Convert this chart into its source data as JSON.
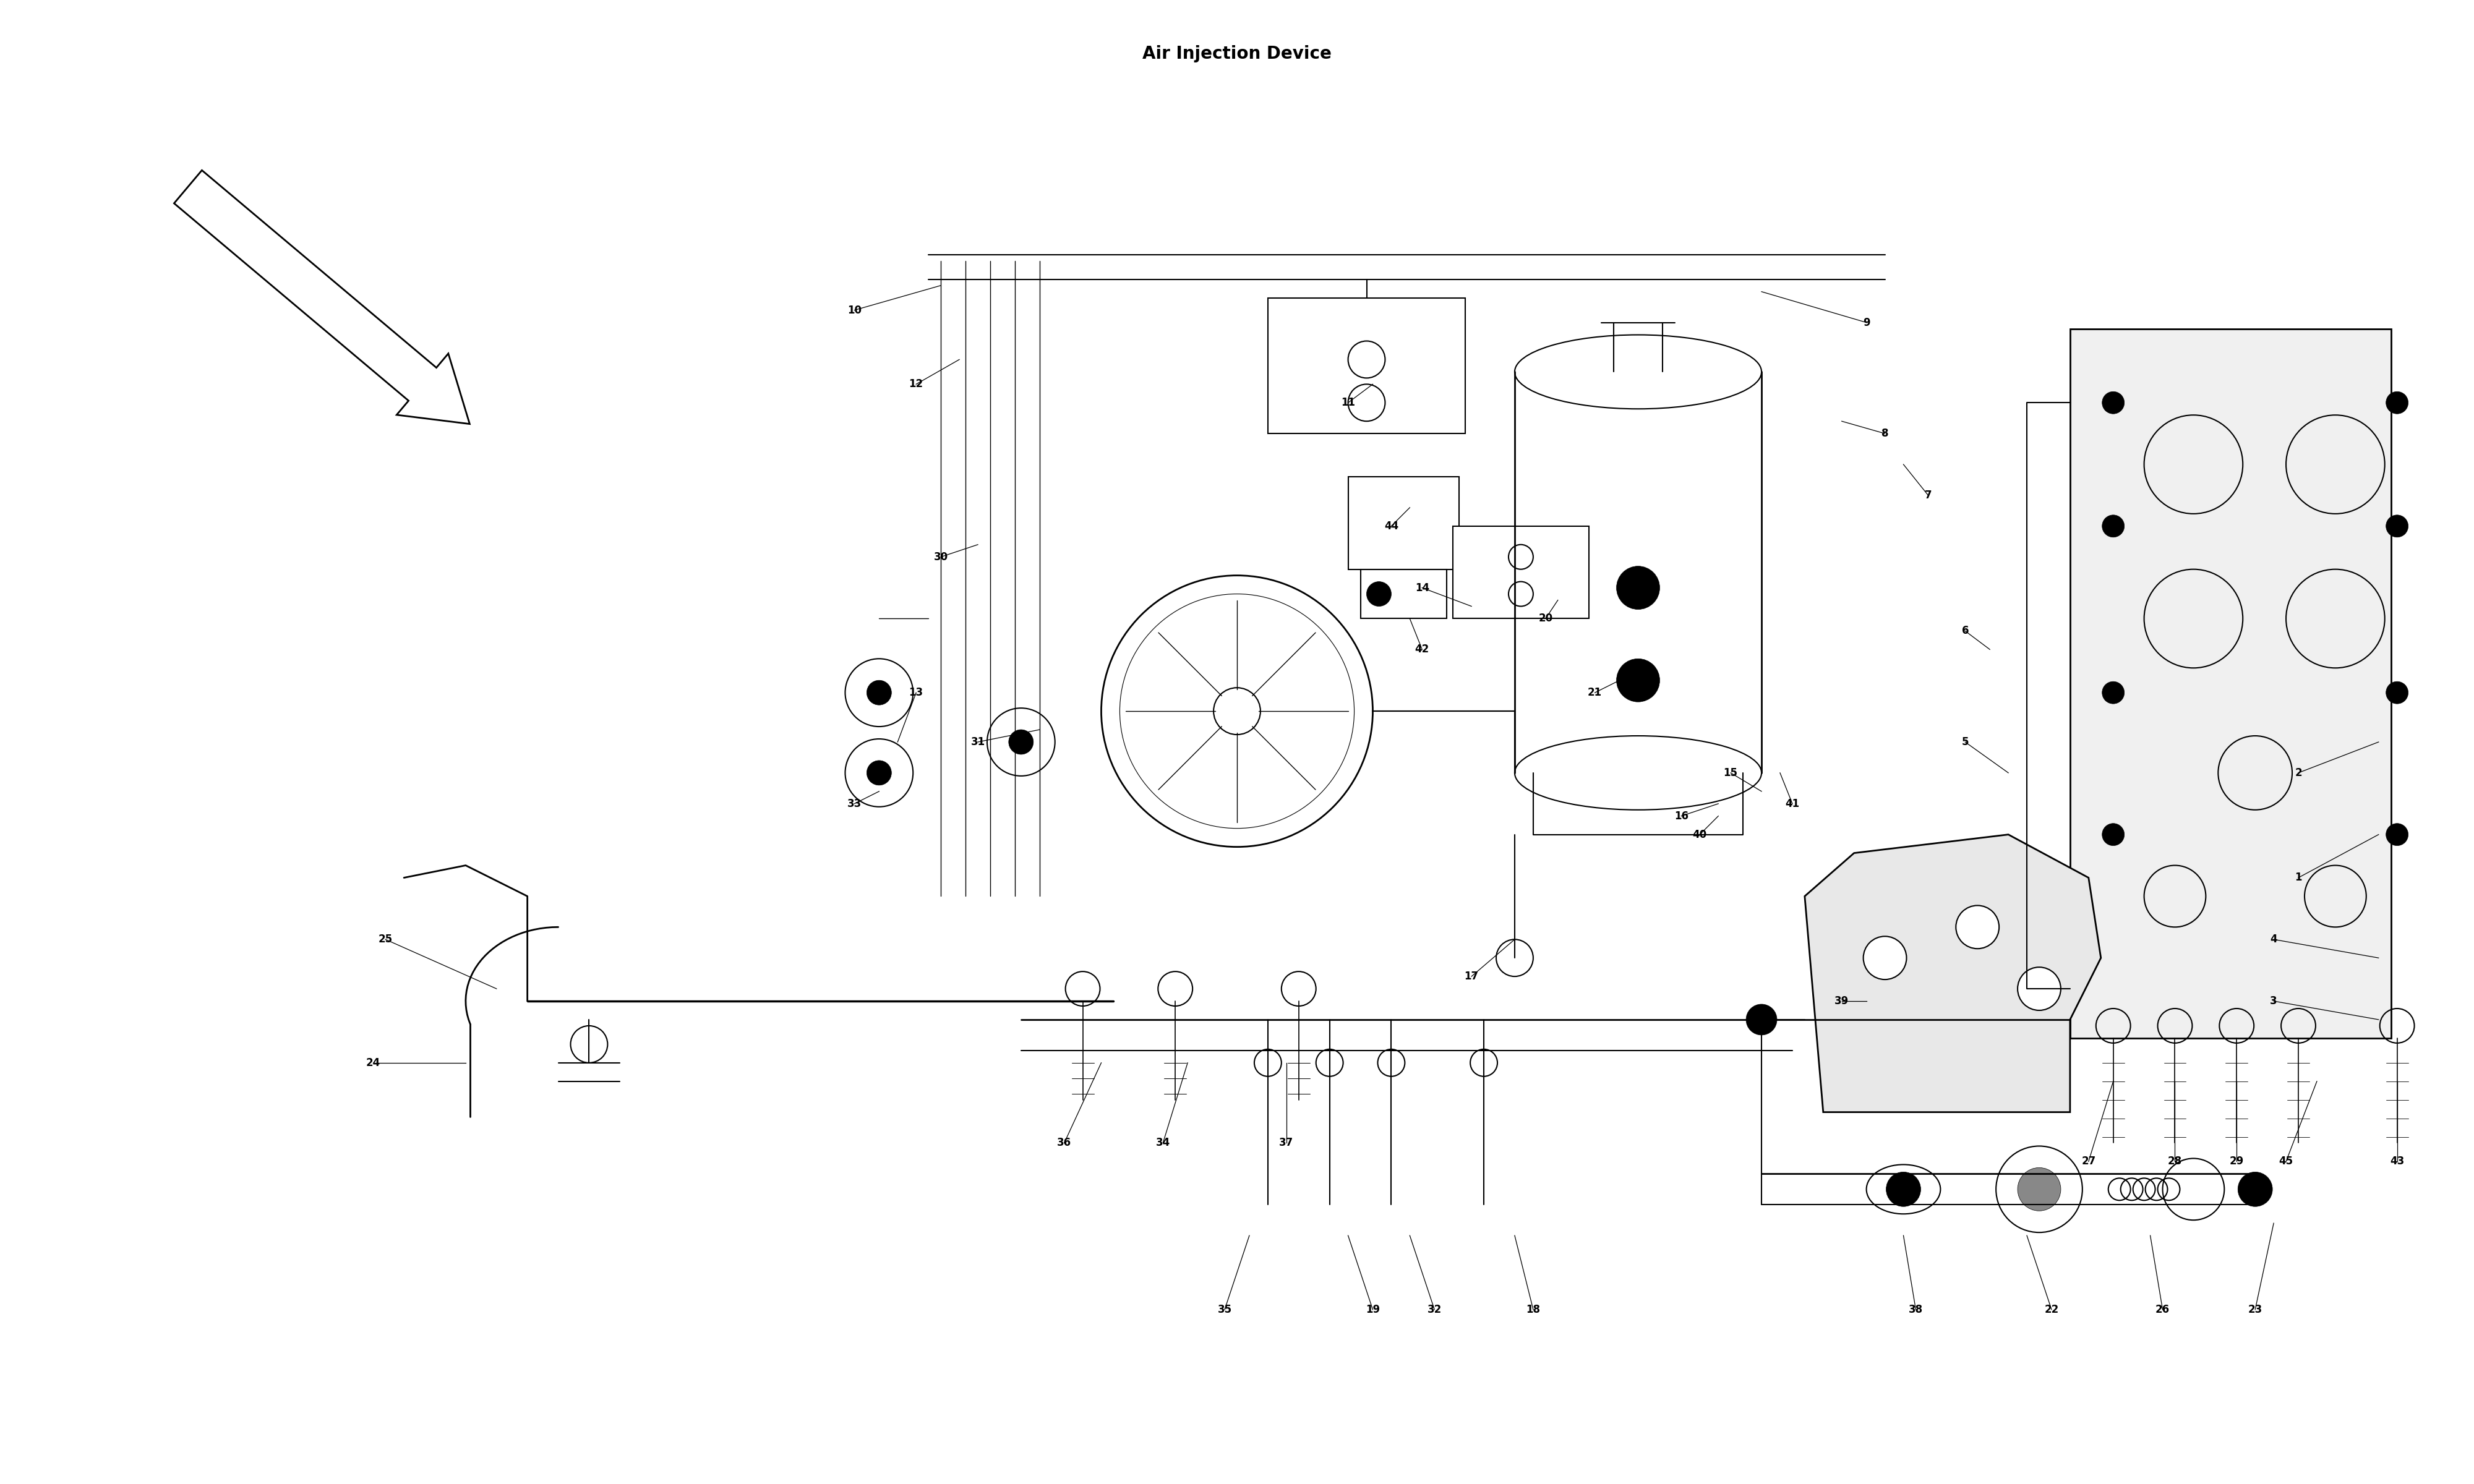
{
  "title": "Air Injection Device",
  "bg_color": "#ffffff",
  "line_color": "#000000",
  "fig_width": 40,
  "fig_height": 24,
  "label_lines": {
    "1": [
      37.2,
      9.8,
      38.5,
      10.5
    ],
    "2": [
      37.2,
      11.5,
      38.5,
      12.0
    ],
    "3": [
      36.8,
      7.8,
      38.5,
      7.5
    ],
    "4": [
      36.8,
      8.8,
      38.5,
      8.5
    ],
    "5": [
      31.8,
      12.0,
      32.5,
      11.5
    ],
    "6": [
      31.8,
      13.8,
      32.2,
      13.5
    ],
    "7": [
      31.2,
      16.0,
      30.8,
      16.5
    ],
    "8": [
      30.5,
      17.0,
      29.8,
      17.2
    ],
    "9": [
      30.2,
      18.8,
      28.5,
      19.3
    ],
    "10": [
      13.8,
      19.0,
      15.2,
      19.4
    ],
    "11": [
      21.8,
      17.5,
      22.2,
      17.8
    ],
    "12": [
      14.8,
      17.8,
      15.5,
      18.2
    ],
    "13": [
      14.8,
      12.8,
      14.5,
      12.0
    ],
    "14": [
      23.0,
      14.5,
      23.8,
      14.2
    ],
    "15": [
      28.0,
      11.5,
      28.5,
      11.2
    ],
    "16": [
      27.2,
      10.8,
      27.8,
      11.0
    ],
    "17": [
      23.8,
      8.2,
      24.5,
      8.8
    ],
    "18": [
      24.8,
      2.8,
      24.5,
      4.0
    ],
    "19": [
      22.2,
      2.8,
      21.8,
      4.0
    ],
    "20": [
      25.0,
      14.0,
      25.2,
      14.3
    ],
    "21": [
      25.8,
      12.8,
      26.2,
      13.0
    ],
    "22": [
      33.2,
      2.8,
      32.8,
      4.0
    ],
    "23": [
      36.5,
      2.8,
      36.8,
      4.2
    ],
    "24": [
      6.0,
      6.8,
      7.5,
      6.8
    ],
    "25": [
      6.2,
      8.8,
      8.0,
      8.0
    ],
    "26": [
      35.0,
      2.8,
      34.8,
      4.0
    ],
    "27": [
      33.8,
      5.2,
      34.2,
      6.5
    ],
    "28": [
      35.2,
      5.2,
      35.2,
      6.5
    ],
    "29": [
      36.2,
      5.2,
      36.2,
      6.5
    ],
    "30": [
      15.2,
      15.0,
      15.8,
      15.2
    ],
    "31": [
      15.8,
      12.0,
      16.8,
      12.2
    ],
    "32": [
      23.2,
      2.8,
      22.8,
      4.0
    ],
    "33": [
      13.8,
      11.0,
      14.2,
      11.2
    ],
    "34": [
      18.8,
      5.5,
      19.2,
      6.8
    ],
    "35": [
      19.8,
      2.8,
      20.2,
      4.0
    ],
    "36": [
      17.2,
      5.5,
      17.8,
      6.8
    ],
    "37": [
      20.8,
      5.5,
      20.8,
      6.8
    ],
    "38": [
      31.0,
      2.8,
      30.8,
      4.0
    ],
    "39": [
      29.8,
      7.8,
      30.2,
      7.8
    ],
    "40": [
      27.5,
      10.5,
      27.8,
      10.8
    ],
    "41": [
      29.0,
      11.0,
      28.8,
      11.5
    ],
    "42": [
      23.0,
      13.5,
      22.8,
      14.0
    ],
    "43": [
      38.8,
      5.2,
      38.8,
      6.5
    ],
    "44": [
      22.5,
      15.5,
      22.8,
      15.8
    ],
    "45": [
      37.0,
      5.2,
      37.5,
      6.5
    ]
  }
}
